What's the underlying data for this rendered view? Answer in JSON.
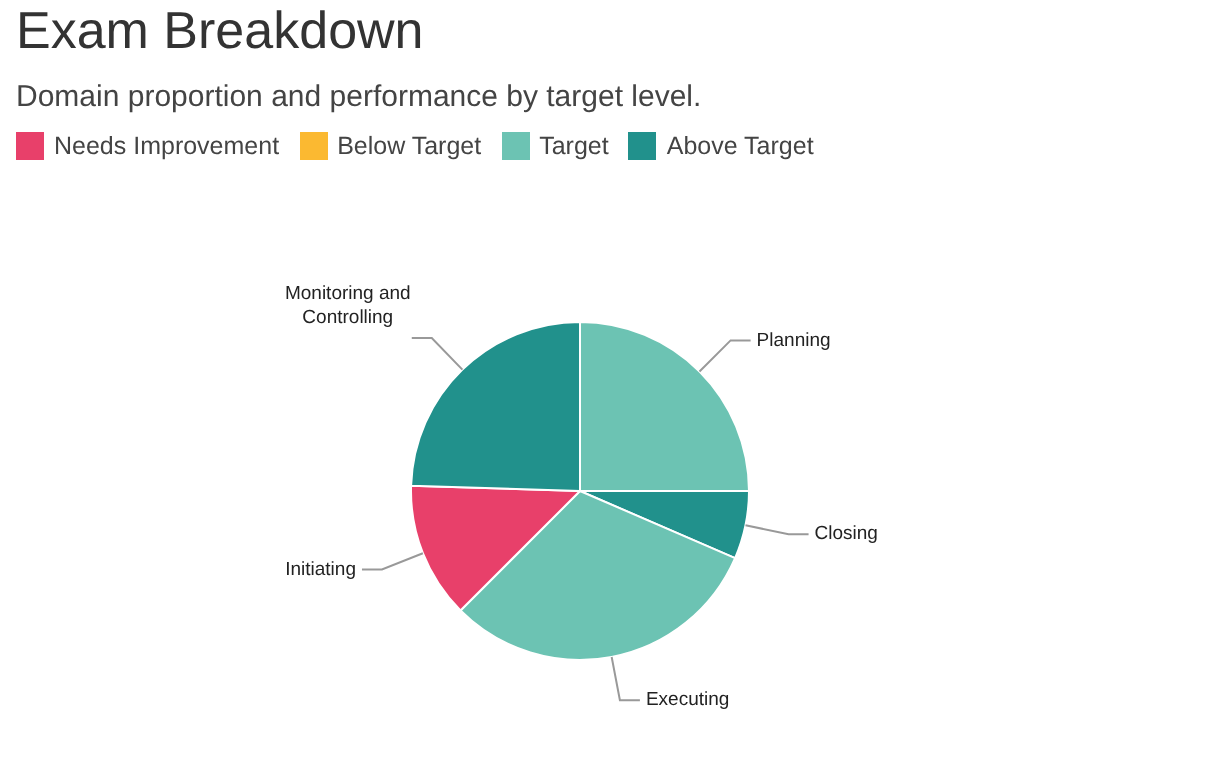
{
  "chart_data": [
    {
      "type": "pie",
      "title": "Exam Breakdown",
      "subtitle": "Domain proportion and performance by target level.",
      "categories": [
        "Planning",
        "Closing",
        "Executing",
        "Initiating",
        "Monitoring and Controlling"
      ],
      "values": [
        25,
        6.5,
        31,
        13,
        24.5
      ],
      "colors": [
        "#6cc3b3",
        "#21918c",
        "#6cc3b3",
        "#e8406a",
        "#21918c"
      ]
    },
    {
      "type": "other",
      "categories": [
        "Needs Improvement",
        "Below Target",
        "Target",
        "Above Target"
      ],
      "colors": [
        "#e8406a",
        "#fbb931",
        "#6cc3b3",
        "#21918c"
      ]
    }
  ]
}
